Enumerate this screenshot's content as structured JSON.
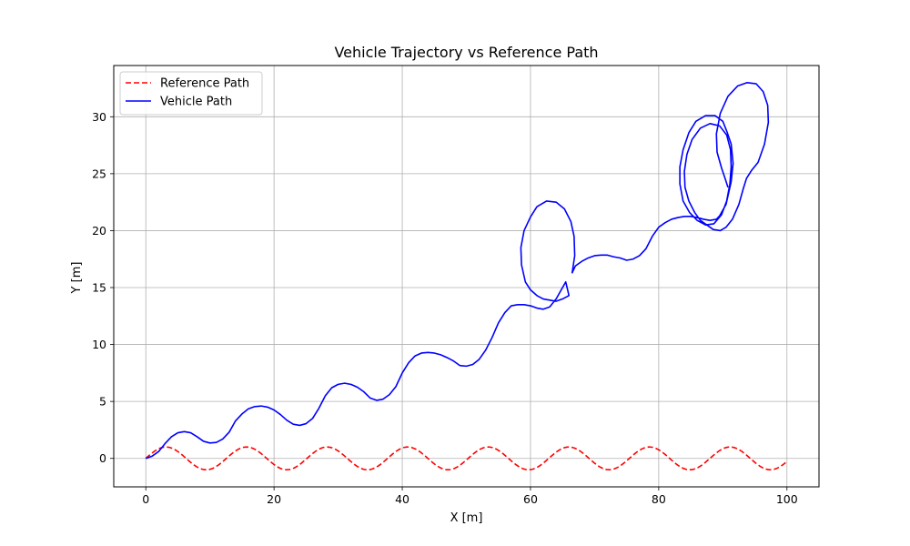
{
  "chart_data": {
    "type": "line",
    "title": "Vehicle Trajectory vs Reference Path",
    "xlabel": "X [m]",
    "ylabel": "Y [m]",
    "xlim": [
      -5,
      105
    ],
    "ylim": [
      -2.5,
      34.5
    ],
    "xticks": [
      0,
      20,
      40,
      60,
      80,
      100
    ],
    "yticks": [
      0,
      5,
      10,
      15,
      20,
      25,
      30
    ],
    "grid": true,
    "legend_position": "top-left",
    "series": [
      {
        "name": "Reference Path",
        "color": "#ff0000",
        "style": "dashed",
        "function": "sine",
        "x_range": [
          0,
          100
        ],
        "amplitude": 1,
        "period": 12.57
      },
      {
        "name": "Vehicle Path",
        "color": "#0000ff",
        "style": "solid",
        "points": [
          [
            0,
            0
          ],
          [
            1,
            0.2
          ],
          [
            2,
            0.6
          ],
          [
            3,
            1.3
          ],
          [
            4,
            1.9
          ],
          [
            5,
            2.25
          ],
          [
            6,
            2.35
          ],
          [
            7,
            2.25
          ],
          [
            8,
            1.9
          ],
          [
            9,
            1.5
          ],
          [
            10,
            1.35
          ],
          [
            11,
            1.4
          ],
          [
            12,
            1.7
          ],
          [
            13,
            2.3
          ],
          [
            14,
            3.3
          ],
          [
            15,
            3.9
          ],
          [
            16,
            4.35
          ],
          [
            17,
            4.55
          ],
          [
            18,
            4.6
          ],
          [
            19,
            4.5
          ],
          [
            20,
            4.25
          ],
          [
            21,
            3.85
          ],
          [
            22,
            3.35
          ],
          [
            23,
            3.0
          ],
          [
            24,
            2.9
          ],
          [
            25,
            3.05
          ],
          [
            26,
            3.5
          ],
          [
            27,
            4.4
          ],
          [
            28,
            5.5
          ],
          [
            29,
            6.2
          ],
          [
            30,
            6.5
          ],
          [
            31,
            6.6
          ],
          [
            32,
            6.5
          ],
          [
            33,
            6.25
          ],
          [
            34,
            5.85
          ],
          [
            35,
            5.3
          ],
          [
            36,
            5.1
          ],
          [
            37,
            5.2
          ],
          [
            38,
            5.6
          ],
          [
            39,
            6.3
          ],
          [
            40,
            7.5
          ],
          [
            41,
            8.4
          ],
          [
            42,
            9.0
          ],
          [
            43,
            9.25
          ],
          [
            44,
            9.3
          ],
          [
            45,
            9.25
          ],
          [
            46,
            9.1
          ],
          [
            47,
            8.85
          ],
          [
            48,
            8.55
          ],
          [
            49,
            8.15
          ],
          [
            50,
            8.1
          ],
          [
            51,
            8.25
          ],
          [
            52,
            8.7
          ],
          [
            53,
            9.5
          ],
          [
            54,
            10.6
          ],
          [
            55,
            11.9
          ],
          [
            56,
            12.8
          ],
          [
            57,
            13.4
          ],
          [
            58,
            13.5
          ],
          [
            59,
            13.5
          ],
          [
            60,
            13.4
          ],
          [
            61,
            13.2
          ],
          [
            62,
            13.1
          ],
          [
            63,
            13.3
          ],
          [
            64,
            14.0
          ],
          [
            65,
            15.0
          ],
          [
            65.5,
            15.5
          ],
          [
            66,
            14.3
          ],
          [
            65,
            14.0
          ],
          [
            64,
            13.8
          ],
          [
            63,
            13.9
          ],
          [
            62,
            14.0
          ],
          [
            61,
            14.3
          ],
          [
            60,
            14.8
          ],
          [
            59.2,
            15.5
          ],
          [
            58.6,
            17.0
          ],
          [
            58.5,
            18.5
          ],
          [
            59,
            20.0
          ],
          [
            60,
            21.2
          ],
          [
            61,
            22.1
          ],
          [
            62.5,
            22.6
          ],
          [
            64,
            22.5
          ],
          [
            65.3,
            21.9
          ],
          [
            66.3,
            20.8
          ],
          [
            66.8,
            19.5
          ],
          [
            66.9,
            17.8
          ],
          [
            66.5,
            16.3
          ],
          [
            67,
            16.9
          ],
          [
            68,
            17.3
          ],
          [
            69,
            17.6
          ],
          [
            70,
            17.8
          ],
          [
            71,
            17.85
          ],
          [
            72,
            17.85
          ],
          [
            73,
            17.7
          ],
          [
            74,
            17.6
          ],
          [
            75,
            17.4
          ],
          [
            76,
            17.5
          ],
          [
            77,
            17.8
          ],
          [
            78,
            18.4
          ],
          [
            79,
            19.5
          ],
          [
            80,
            20.3
          ],
          [
            81,
            20.7
          ],
          [
            82,
            21.0
          ],
          [
            83,
            21.15
          ],
          [
            84,
            21.25
          ],
          [
            85,
            21.25
          ],
          [
            86,
            21.15
          ],
          [
            87,
            21.0
          ],
          [
            88,
            20.9
          ],
          [
            89,
            21.0
          ],
          [
            89.5,
            21.3
          ],
          [
            90.5,
            22.3
          ],
          [
            91.3,
            24.3
          ],
          [
            91.6,
            25.9
          ],
          [
            91.3,
            27.6
          ],
          [
            90.7,
            28.6
          ],
          [
            90,
            29.6
          ],
          [
            88.8,
            30.1
          ],
          [
            87.3,
            30.1
          ],
          [
            85.8,
            29.6
          ],
          [
            84.7,
            28.6
          ],
          [
            83.8,
            27.1
          ],
          [
            83.3,
            25.6
          ],
          [
            83.3,
            24.1
          ],
          [
            83.8,
            22.6
          ],
          [
            84.8,
            21.6
          ],
          [
            86,
            20.9
          ],
          [
            87.3,
            20.5
          ],
          [
            88.6,
            20.6
          ],
          [
            89.8,
            21.4
          ],
          [
            90.6,
            22.6
          ],
          [
            91.1,
            24.1
          ],
          [
            91.3,
            25.6
          ],
          [
            91.2,
            27.1
          ],
          [
            90.6,
            28.4
          ],
          [
            89.5,
            29.2
          ],
          [
            88,
            29.4
          ],
          [
            86.5,
            29.0
          ],
          [
            85.2,
            28.0
          ],
          [
            84.4,
            26.7
          ],
          [
            84.0,
            25.2
          ],
          [
            84.1,
            23.8
          ],
          [
            84.7,
            22.6
          ],
          [
            85.6,
            21.6
          ],
          [
            86.5,
            20.9
          ],
          [
            87.5,
            20.5
          ],
          [
            88.5,
            20.1
          ],
          [
            89.6,
            20.0
          ],
          [
            90.5,
            20.3
          ],
          [
            91.5,
            21.0
          ],
          [
            92.5,
            22.3
          ],
          [
            93.2,
            23.7
          ],
          [
            93.7,
            24.6
          ],
          [
            94.5,
            25.3
          ],
          [
            95.5,
            26.0
          ],
          [
            96.5,
            27.6
          ],
          [
            97.1,
            29.5
          ],
          [
            97.0,
            31.0
          ],
          [
            96.3,
            32.2
          ],
          [
            95.2,
            32.9
          ],
          [
            93.8,
            33.0
          ],
          [
            92.3,
            32.7
          ],
          [
            90.8,
            31.8
          ],
          [
            89.6,
            30.3
          ],
          [
            89.0,
            28.5
          ],
          [
            89.1,
            26.9
          ],
          [
            89.8,
            25.5
          ],
          [
            90.4,
            24.5
          ],
          [
            90.8,
            23.8
          ]
        ]
      }
    ]
  }
}
